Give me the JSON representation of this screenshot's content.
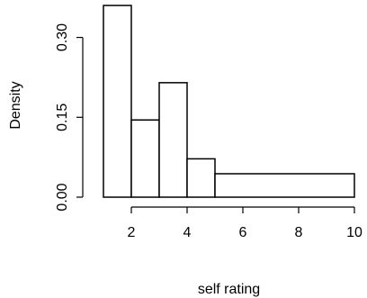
{
  "chart_data": {
    "type": "bar",
    "histogram": true,
    "xlabel": "self rating",
    "ylabel": "Density",
    "xlim": [
      1,
      10
    ],
    "ylim": [
      0,
      0.35
    ],
    "xticks": [
      2,
      4,
      6,
      8,
      10
    ],
    "xtick_labels": [
      "2",
      "4",
      "6",
      "8",
      "10"
    ],
    "yticks": [
      0.0,
      0.15,
      0.3
    ],
    "ytick_labels": [
      "0.00",
      "0.15",
      "0.30"
    ],
    "bins": [
      {
        "x0": 1,
        "x1": 2,
        "density": 0.36
      },
      {
        "x0": 2,
        "x1": 3,
        "density": 0.145
      },
      {
        "x0": 3,
        "x1": 4,
        "density": 0.215
      },
      {
        "x0": 4,
        "x1": 5,
        "density": 0.072
      },
      {
        "x0": 5,
        "x1": 10,
        "density": 0.044
      }
    ],
    "grid": false,
    "colors": {
      "bar_fill": "#ffffff",
      "bar_stroke": "#000000",
      "axis": "#000000"
    }
  }
}
